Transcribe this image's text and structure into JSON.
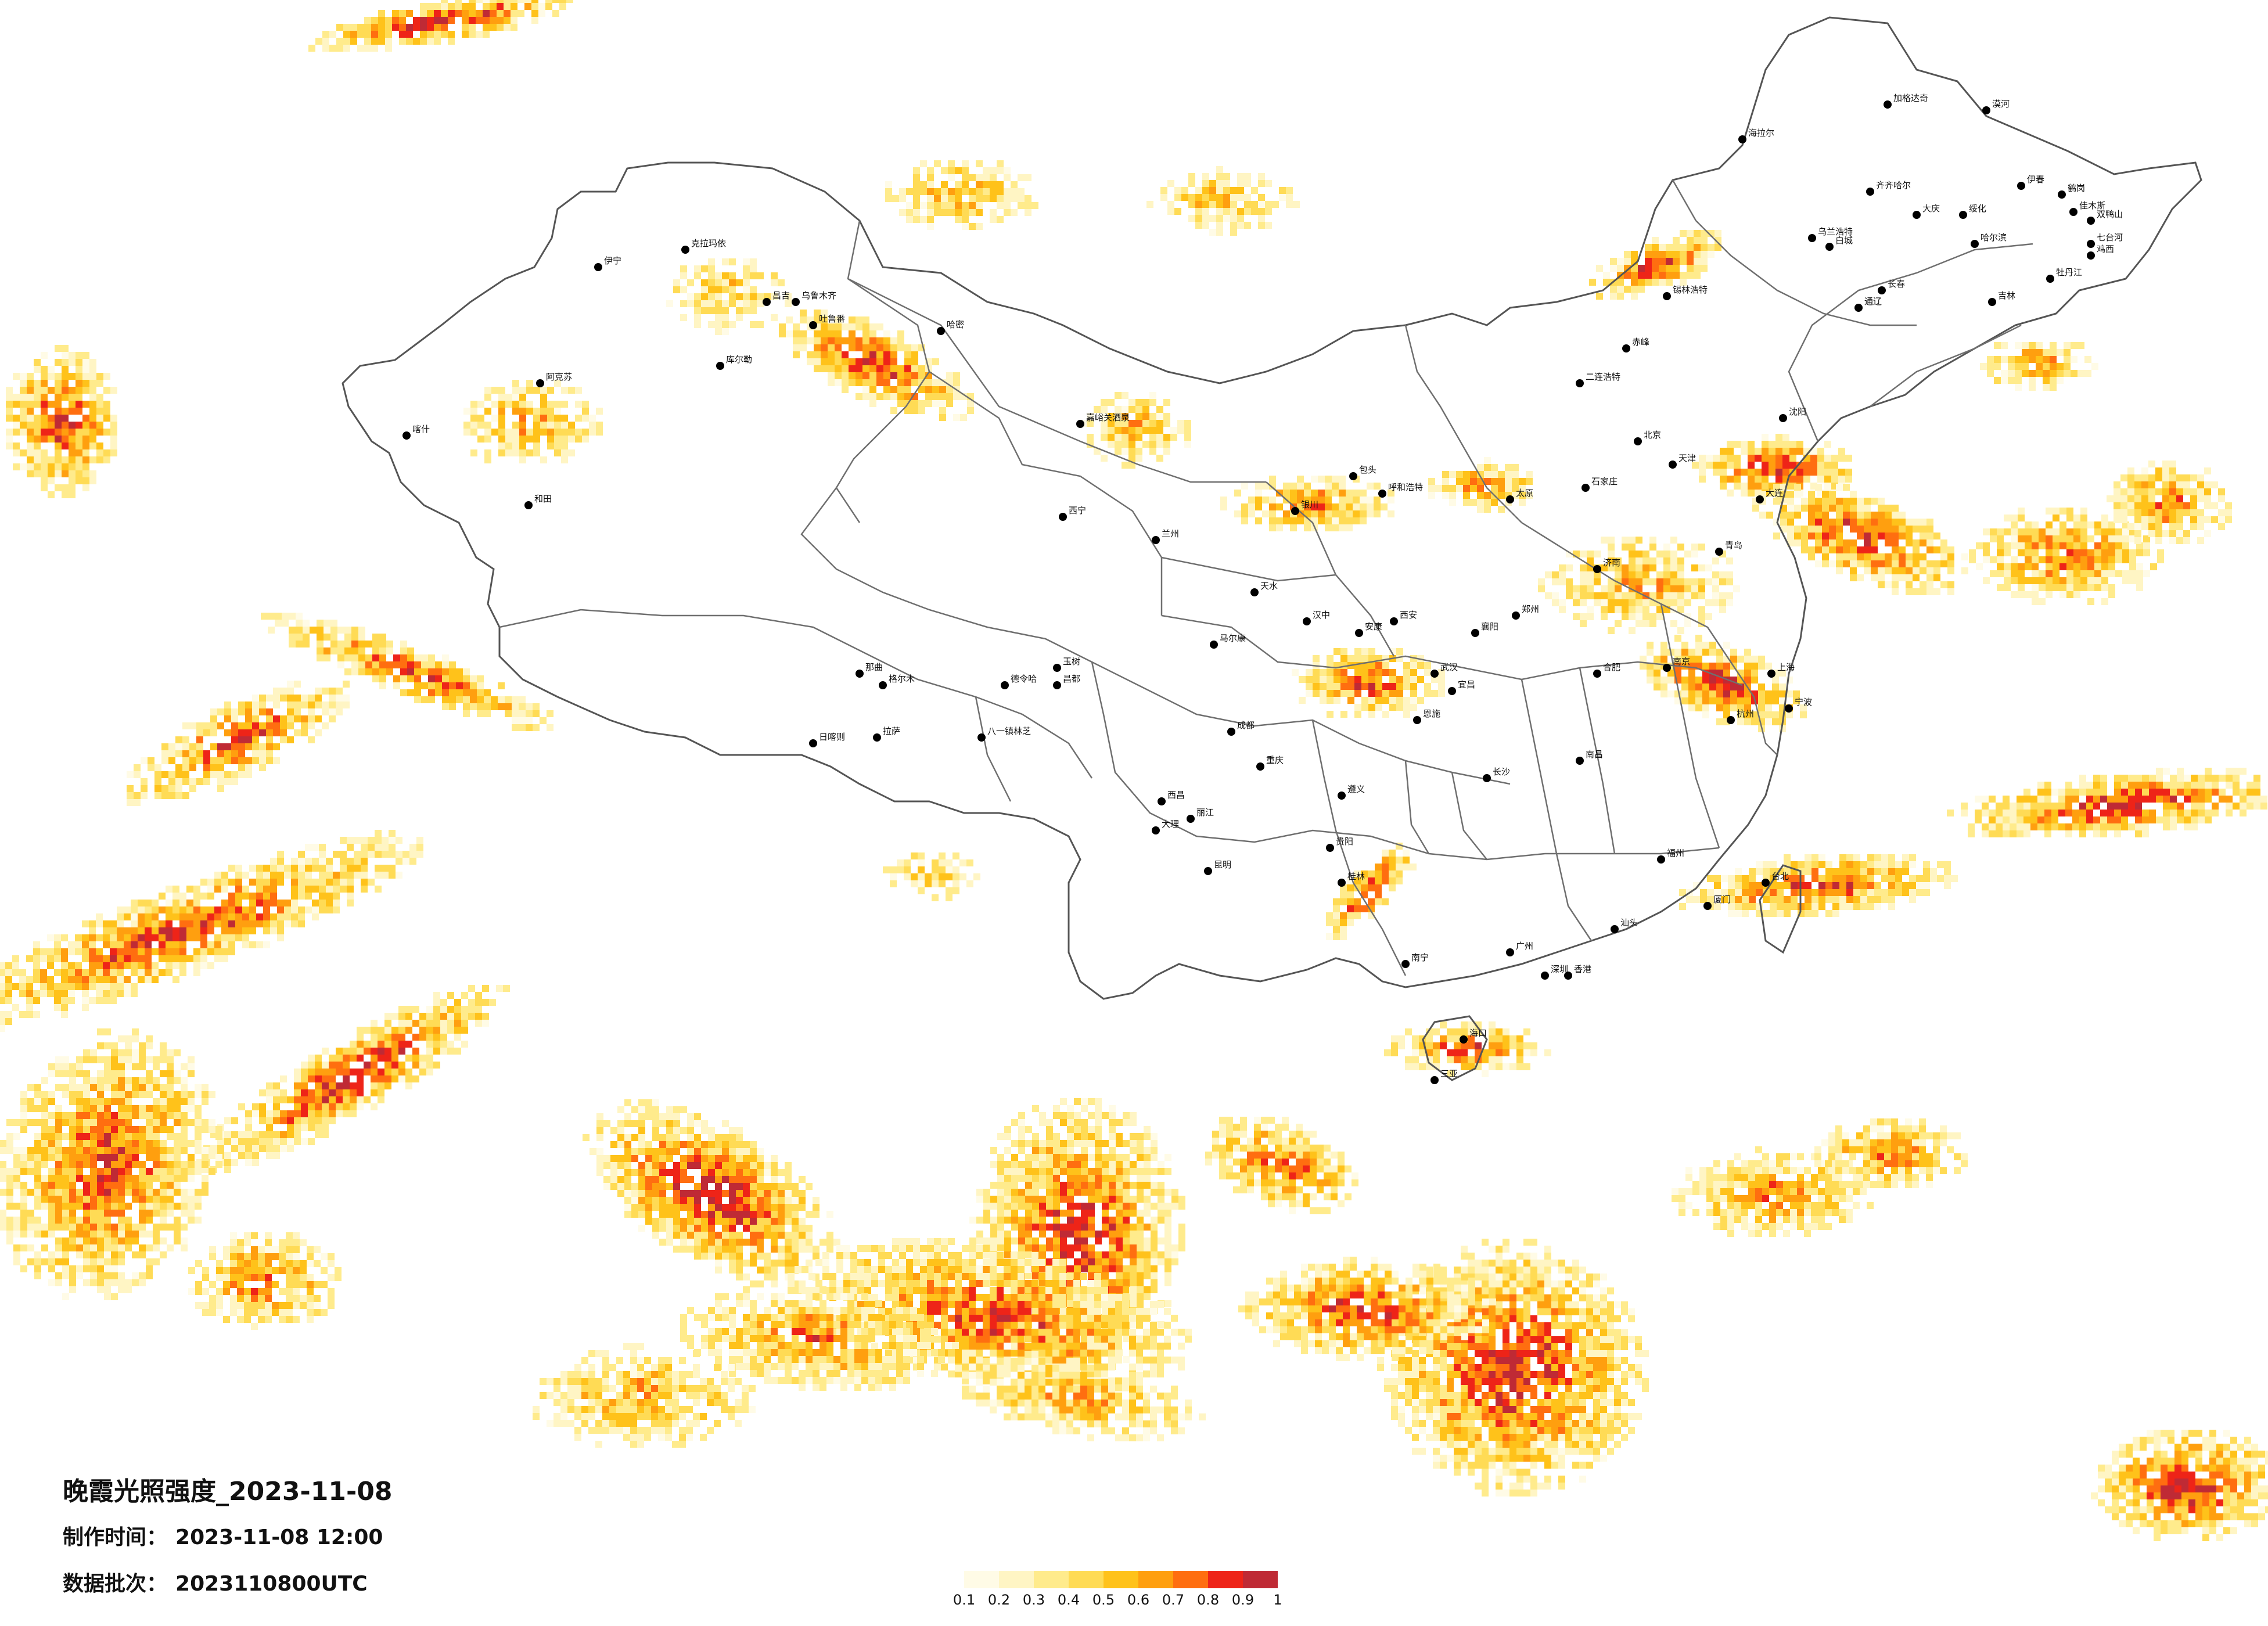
{
  "title": "晚霞光照强度_2023-11-08",
  "made_time": {
    "label": "制作时间：",
    "value": "2023-11-08 12:00"
  },
  "data_batch": {
    "label": "数据批次：",
    "value": "2023110800UTC"
  },
  "legend": {
    "colors": [
      "#fffbe6",
      "#fff5c4",
      "#ffeb8c",
      "#ffdb55",
      "#ffc21a",
      "#ff9f0f",
      "#ff6e10",
      "#ee2418",
      "#bf2a35"
    ],
    "ticks": [
      "0.1",
      "0.2",
      "0.3",
      "0.4",
      "0.5",
      "0.6",
      "0.7",
      "0.8",
      "0.9",
      "1"
    ]
  },
  "city_labels": [
    "漠河",
    "海拉尔",
    "加格达奇",
    "齐齐哈尔",
    "伊春",
    "鹤岗",
    "佳木斯",
    "双鸭山",
    "七台河",
    "鸡西",
    "绥化",
    "哈尔滨",
    "大庆",
    "乌兰浩特",
    "白城",
    "牡丹江",
    "吉林",
    "通辽",
    "锡林浩特",
    "克拉玛依",
    "昌吉",
    "乌鲁木齐",
    "吐鲁番",
    "哈密",
    "伊宁",
    "库尔勒",
    "阿克苏",
    "喀什",
    "和田",
    "嘉峪关酒泉",
    "格尔木",
    "德令哈",
    "西宁",
    "兰州",
    "银川",
    "呼和浩特",
    "包头",
    "二连浩特",
    "北京",
    "天津",
    "石家庄",
    "太原",
    "济南",
    "郑州",
    "西安",
    "武汉",
    "合肥",
    "南京",
    "上海",
    "杭州",
    "南昌",
    "长沙",
    "福州",
    "台北",
    "广州",
    "深圳",
    "香港",
    "南宁",
    "海口",
    "三亚",
    "贵阳",
    "昆明",
    "成都",
    "重庆",
    "拉萨",
    "日喀则",
    "那曲",
    "昌都",
    "八一镇林芝",
    "玉树",
    "马尔康",
    "西昌",
    "大理",
    "丽江",
    "沈阳",
    "大连",
    "长春",
    "赤峰",
    "青岛",
    "宁波",
    "厦门",
    "汕头",
    "桂林",
    "遵义",
    "恩施",
    "宜昌",
    "襄阳",
    "安康",
    "汉中",
    "天水"
  ]
}
